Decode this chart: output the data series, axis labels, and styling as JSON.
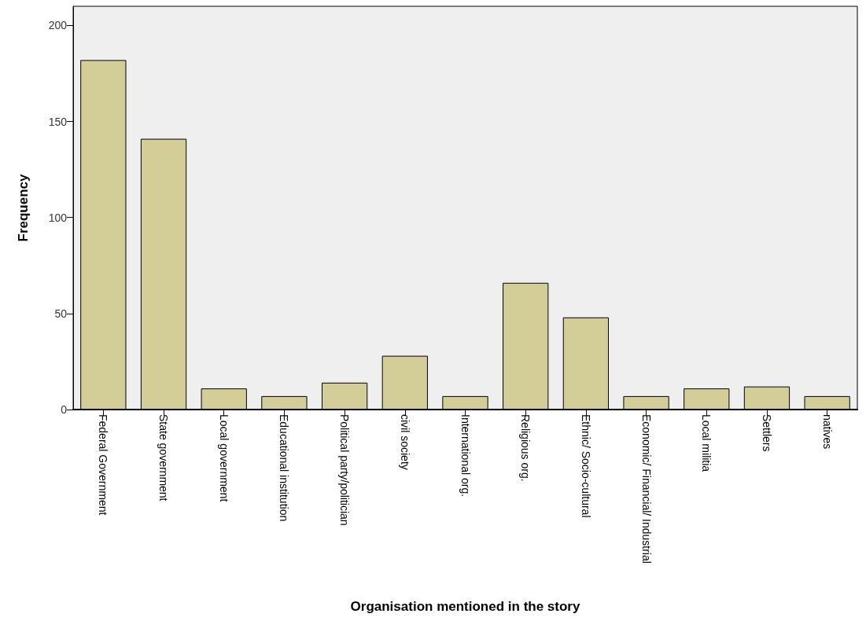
{
  "chart_data": {
    "type": "bar",
    "xlabel": "Organisation mentioned in the story",
    "ylabel": "Frequency",
    "categories": [
      "Federal Government",
      "State government",
      "Local government",
      "Educational institution",
      "Political party/politician",
      "civil society",
      "International org.",
      "Religious org.",
      "Ethnic/ Socio-cultural",
      "Economic/ Financial/ Industrial",
      "Local militia",
      "Settlers",
      "natives"
    ],
    "values": [
      182,
      141,
      11,
      7,
      14,
      28,
      7,
      66,
      48,
      7,
      11,
      12,
      7
    ],
    "color": "#d3cd98",
    "ylim": [
      0,
      210
    ],
    "yticks": [
      0,
      50,
      100,
      150,
      200
    ],
    "grid": false
  }
}
